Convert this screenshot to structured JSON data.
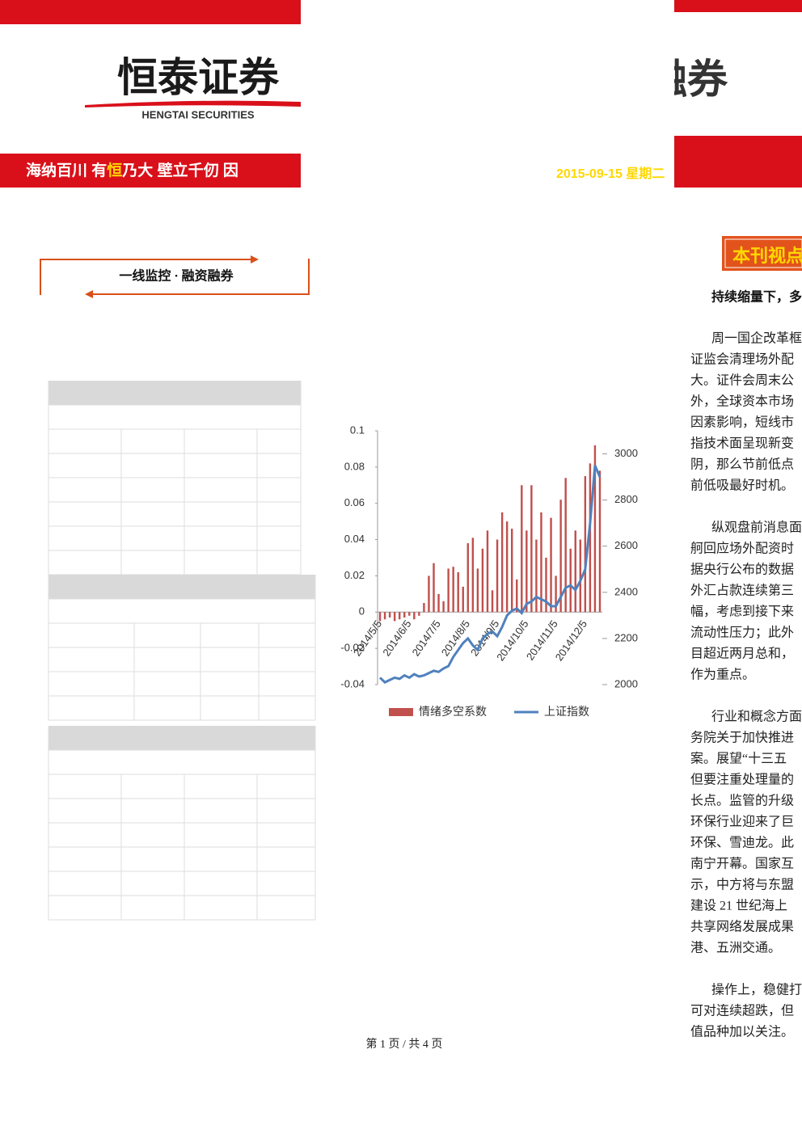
{
  "header": {
    "logo": "恒泰证券",
    "logo_en": "HENGTAI SECURITIES",
    "slogan": [
      "海纳百川 有",
      "恒",
      "乃大  壁立千仞  因"
    ],
    "brand_right": "融券",
    "date": "2015-09-15 星期二"
  },
  "section_label": "一线监控 · 融资融券",
  "chart_data": {
    "type": "bar-line",
    "categories": [
      "2014/5/5",
      null,
      null,
      null,
      null,
      null,
      "2014/6/5",
      null,
      null,
      null,
      null,
      null,
      "2014/7/5",
      null,
      null,
      null,
      null,
      null,
      "2014/8/5",
      null,
      null,
      null,
      null,
      null,
      "2014/9/5",
      null,
      null,
      null,
      null,
      null,
      "2014/10/5",
      null,
      null,
      null,
      null,
      null,
      "2014/11/5",
      null,
      null,
      null,
      null,
      null,
      "2014/12/5",
      null,
      null,
      null
    ],
    "series": [
      {
        "name": "情绪多空系数",
        "type": "bar",
        "color": "#c0504d",
        "values": [
          -0.005,
          -0.004,
          -0.003,
          -0.005,
          -0.004,
          -0.003,
          -0.002,
          -0.004,
          -0.002,
          0.005,
          0.02,
          0.027,
          0.01,
          0.006,
          0.024,
          0.025,
          0.022,
          0.014,
          0.038,
          0.041,
          0.024,
          0.035,
          0.045,
          0.012,
          0.04,
          0.055,
          0.05,
          0.046,
          0.018,
          0.07,
          0.045,
          0.07,
          0.04,
          0.055,
          0.03,
          0.052,
          0.02,
          0.062,
          0.074,
          0.035,
          0.045,
          0.04,
          0.075,
          0.082,
          0.092,
          0.078
        ]
      },
      {
        "name": "上证指数",
        "type": "line",
        "axis": "y2",
        "color": "#4f81bd",
        "values": [
          2030,
          2010,
          2020,
          2030,
          2025,
          2040,
          2030,
          2045,
          2035,
          2040,
          2050,
          2060,
          2055,
          2070,
          2080,
          2120,
          2150,
          2180,
          2200,
          2170,
          2150,
          2200,
          2220,
          2230,
          2210,
          2250,
          2300,
          2320,
          2330,
          2310,
          2350,
          2360,
          2380,
          2370,
          2360,
          2340,
          2340,
          2380,
          2420,
          2430,
          2410,
          2450,
          2500,
          2700,
          2950,
          2900
        ]
      }
    ],
    "ylim": [
      -0.04,
      0.1
    ],
    "yticks": [
      -0.04,
      -0.02,
      0,
      0.02,
      0.04,
      0.06,
      0.08,
      0.1
    ],
    "y2lim": [
      2000,
      3100
    ],
    "y2ticks": [
      2000,
      2200,
      2400,
      2600,
      2800,
      3000
    ]
  },
  "article": {
    "heading": "本刊视点",
    "lead": "持续缩量下，多",
    "paragraphs": [
      [
        "周一国企改革框",
        "证监会清理场外配",
        "大。证件会周末公",
        "外，全球资本市场",
        "因素影响，短线市",
        "指技术面呈现新变",
        "阴，那么节前低点",
        "前低吸最好时机。"
      ],
      [
        "纵观盘前消息面",
        "舸回应场外配资时",
        "据央行公布的数据",
        "外汇占款连续第三",
        "幅，考虑到接下来",
        "流动性压力；此外",
        "目超近两月总和，",
        "作为重点。"
      ],
      [
        "行业和概念方面",
        "务院关于加快推进",
        "案。展望“十三五",
        "但要注重处理量的",
        "长点。监管的升级",
        "环保行业迎来了巨",
        "环保、雪迪龙。此",
        "南宁开幕。国家互",
        "示，中方将与东盟",
        "建设 21 世纪海上",
        "共享网络发展成果",
        "港、五洲交通。"
      ],
      [
        "操作上，稳健打",
        "可对连续超跌，但",
        "值品种加以关注。"
      ]
    ]
  },
  "footer": "第 1 页 / 共 4 页"
}
